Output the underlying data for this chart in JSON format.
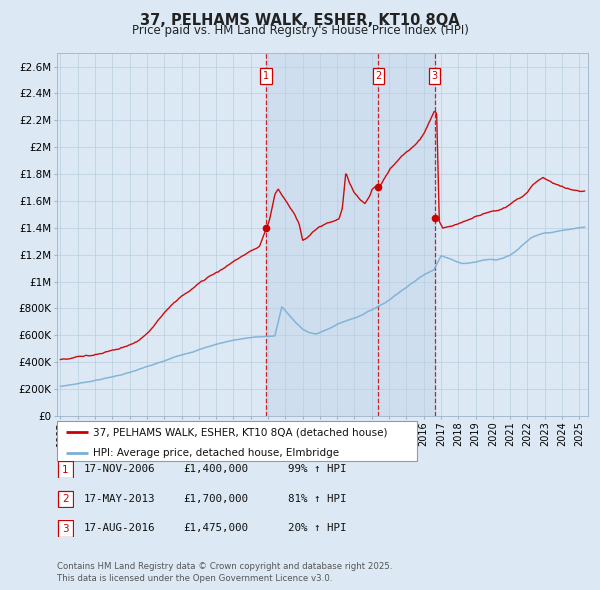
{
  "title": "37, PELHAMS WALK, ESHER, KT10 8QA",
  "subtitle": "Price paid vs. HM Land Registry's House Price Index (HPI)",
  "background_color": "#dce9f5",
  "plot_bg_color": "#dce9f5",
  "red_line_color": "#cc0000",
  "blue_line_color": "#7bafd4",
  "grid_color": "#b8cfe0",
  "marker_color": "#cc0000",
  "title_color": "#222222",
  "transactions": [
    {
      "num": 1,
      "date_label": "17-NOV-2006",
      "price": 1400000,
      "pct": "99%",
      "direction": "↑",
      "x_year": 2006.88
    },
    {
      "num": 2,
      "date_label": "17-MAY-2013",
      "price": 1700000,
      "pct": "81%",
      "direction": "↑",
      "x_year": 2013.38
    },
    {
      "num": 3,
      "date_label": "17-AUG-2016",
      "price": 1475000,
      "pct": "20%",
      "direction": "↑",
      "x_year": 2016.63
    }
  ],
  "ylim": [
    0,
    2700000
  ],
  "yticks": [
    0,
    200000,
    400000,
    600000,
    800000,
    1000000,
    1200000,
    1400000,
    1600000,
    1800000,
    2000000,
    2200000,
    2400000,
    2600000
  ],
  "ytick_labels": [
    "£0",
    "£200K",
    "£400K",
    "£600K",
    "£800K",
    "£1M",
    "£1.2M",
    "£1.4M",
    "£1.6M",
    "£1.8M",
    "£2M",
    "£2.2M",
    "£2.4M",
    "£2.6M"
  ],
  "xlim_start": 1994.8,
  "xlim_end": 2025.5,
  "xticks": [
    1995,
    1996,
    1997,
    1998,
    1999,
    2000,
    2001,
    2002,
    2003,
    2004,
    2005,
    2006,
    2007,
    2008,
    2009,
    2010,
    2011,
    2012,
    2013,
    2014,
    2015,
    2016,
    2017,
    2018,
    2019,
    2020,
    2021,
    2022,
    2023,
    2024,
    2025
  ],
  "footer_text": "Contains HM Land Registry data © Crown copyright and database right 2025.\nThis data is licensed under the Open Government Licence v3.0.",
  "legend_entries": [
    "37, PELHAMS WALK, ESHER, KT10 8QA (detached house)",
    "HPI: Average price, detached house, Elmbridge"
  ],
  "shaded_region_start": 2006.88,
  "shaded_region_end": 2016.63
}
